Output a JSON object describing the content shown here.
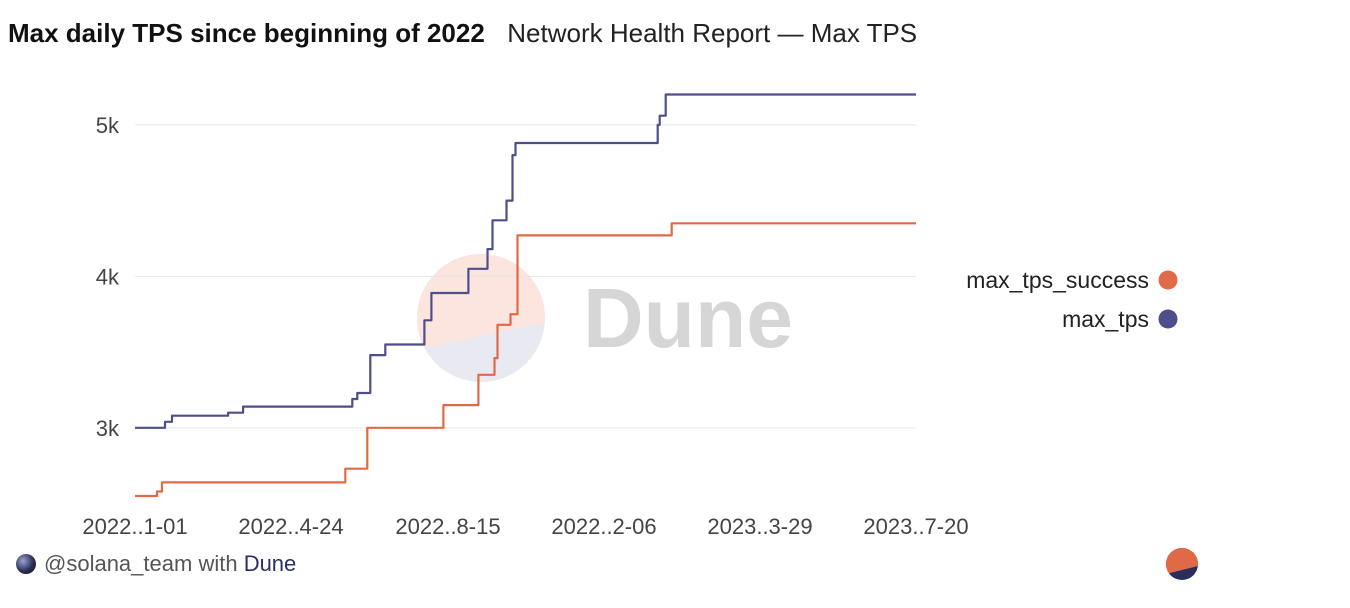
{
  "header": {
    "title": "Max daily TPS since beginning of 2022",
    "subtitle": "Network Health Report — Max TPS"
  },
  "footer": {
    "user": "@solana_team",
    "with": "with",
    "brand": "Dune"
  },
  "watermark": {
    "text": "Dune"
  },
  "colors": {
    "max_tps_success": "#e06a48",
    "max_tps": "#4e4e8c",
    "grid": "#e6e6e6"
  },
  "chart_data": {
    "type": "line",
    "title": "Max daily TPS since beginning of 2022",
    "subtitle": "Network Health Report — Max TPS",
    "xlabel": "",
    "ylabel": "",
    "x_ticks": [
      "2022..1-01",
      "2022..4-24",
      "2022..8-15",
      "2022..2-06",
      "2023..3-29",
      "2023..7-20"
    ],
    "x_range_days": [
      0,
      1000
    ],
    "ylim": [
      2550,
      5200
    ],
    "y_ticks": [
      {
        "value": 3000,
        "label": "3k"
      },
      {
        "value": 4000,
        "label": "4k"
      },
      {
        "value": 5000,
        "label": "5k"
      }
    ],
    "grid": true,
    "legend": "right",
    "series": [
      {
        "name": "max_tps_success",
        "color": "#e06a48",
        "step": true,
        "points": [
          [
            0,
            2550
          ],
          [
            22,
            2580
          ],
          [
            27,
            2640
          ],
          [
            208,
            2640
          ],
          [
            210,
            2730
          ],
          [
            228,
            2730
          ],
          [
            232,
            3000
          ],
          [
            305,
            3000
          ],
          [
            308,
            3150
          ],
          [
            340,
            3150
          ],
          [
            343,
            3350
          ],
          [
            357,
            3350
          ],
          [
            359,
            3460
          ],
          [
            362,
            3680
          ],
          [
            372,
            3680
          ],
          [
            375,
            3750
          ],
          [
            379,
            3750
          ],
          [
            382,
            4270
          ],
          [
            533,
            4270
          ],
          [
            536,
            4350
          ],
          [
            780,
            4350
          ]
        ]
      },
      {
        "name": "max_tps",
        "color": "#4e4e8c",
        "step": true,
        "points": [
          [
            0,
            3000
          ],
          [
            28,
            3000
          ],
          [
            30,
            3040
          ],
          [
            35,
            3040
          ],
          [
            37,
            3080
          ],
          [
            90,
            3080
          ],
          [
            93,
            3100
          ],
          [
            105,
            3100
          ],
          [
            108,
            3140
          ],
          [
            215,
            3140
          ],
          [
            217,
            3190
          ],
          [
            222,
            3230
          ],
          [
            232,
            3230
          ],
          [
            235,
            3480
          ],
          [
            247,
            3480
          ],
          [
            250,
            3550
          ],
          [
            286,
            3550
          ],
          [
            289,
            3710
          ],
          [
            293,
            3710
          ],
          [
            296,
            3890
          ],
          [
            330,
            3890
          ],
          [
            333,
            4050
          ],
          [
            350,
            4050
          ],
          [
            352,
            4180
          ],
          [
            354,
            4180
          ],
          [
            357,
            4370
          ],
          [
            368,
            4370
          ],
          [
            371,
            4500
          ],
          [
            374,
            4500
          ],
          [
            377,
            4800
          ],
          [
            380,
            4880
          ],
          [
            520,
            4880
          ],
          [
            522,
            5000
          ],
          [
            524,
            5060
          ],
          [
            528,
            5060
          ],
          [
            530,
            5200
          ],
          [
            780,
            5200
          ]
        ]
      }
    ]
  }
}
